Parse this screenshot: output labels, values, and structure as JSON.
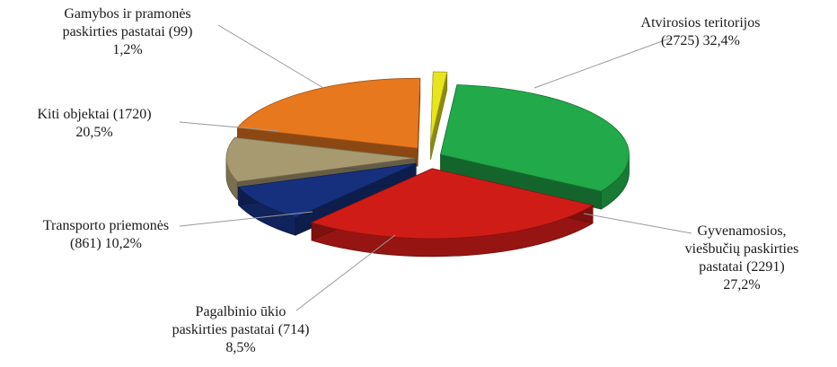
{
  "chart_data": {
    "type": "pie",
    "title": "",
    "slices": [
      {
        "name": "Atvirosios teritorijos",
        "value": 2725,
        "percent": "32,4%",
        "color": "#22a94a",
        "label_lines": [
          "Atvirosios teritorijos",
          "(2725) 32,4%"
        ]
      },
      {
        "name": "Gyvenamosios, viešbučių paskirties pastatai",
        "value": 2291,
        "percent": "27,2%",
        "color": "#d01c17",
        "label_lines": [
          "Gyvenamosios,",
          "viešbučių paskirties",
          "pastatai (2291)",
          "27,2%"
        ]
      },
      {
        "name": "Pagalbinio ūkio paskirties pastatai",
        "value": 714,
        "percent": "8,5%",
        "color": "#16307e",
        "label_lines": [
          "Pagalbinio  ūkio",
          "paskirties pastatai (714)",
          "8,5%"
        ]
      },
      {
        "name": "Transporto priemonės",
        "value": 861,
        "percent": "10,2%",
        "color": "#a89a70",
        "label_lines": [
          "Transporto priemonės",
          "(861) 10,2%"
        ]
      },
      {
        "name": "Kiti objektai",
        "value": 1720,
        "percent": "20,5%",
        "color": "#e8781e",
        "label_lines": [
          "Kiti objektai (1720)",
          "20,5%"
        ]
      },
      {
        "name": "Gamybos ir pramonės paskirties pastatai",
        "value": 99,
        "percent": "1,2%",
        "color": "#e8e51e",
        "label_lines": [
          "Gamybos ir pramonės",
          "paskirties pastatai (99)",
          "1,2%"
        ]
      }
    ],
    "start_angle_deg": -85,
    "exploded": true,
    "style": "3d-tilted"
  }
}
